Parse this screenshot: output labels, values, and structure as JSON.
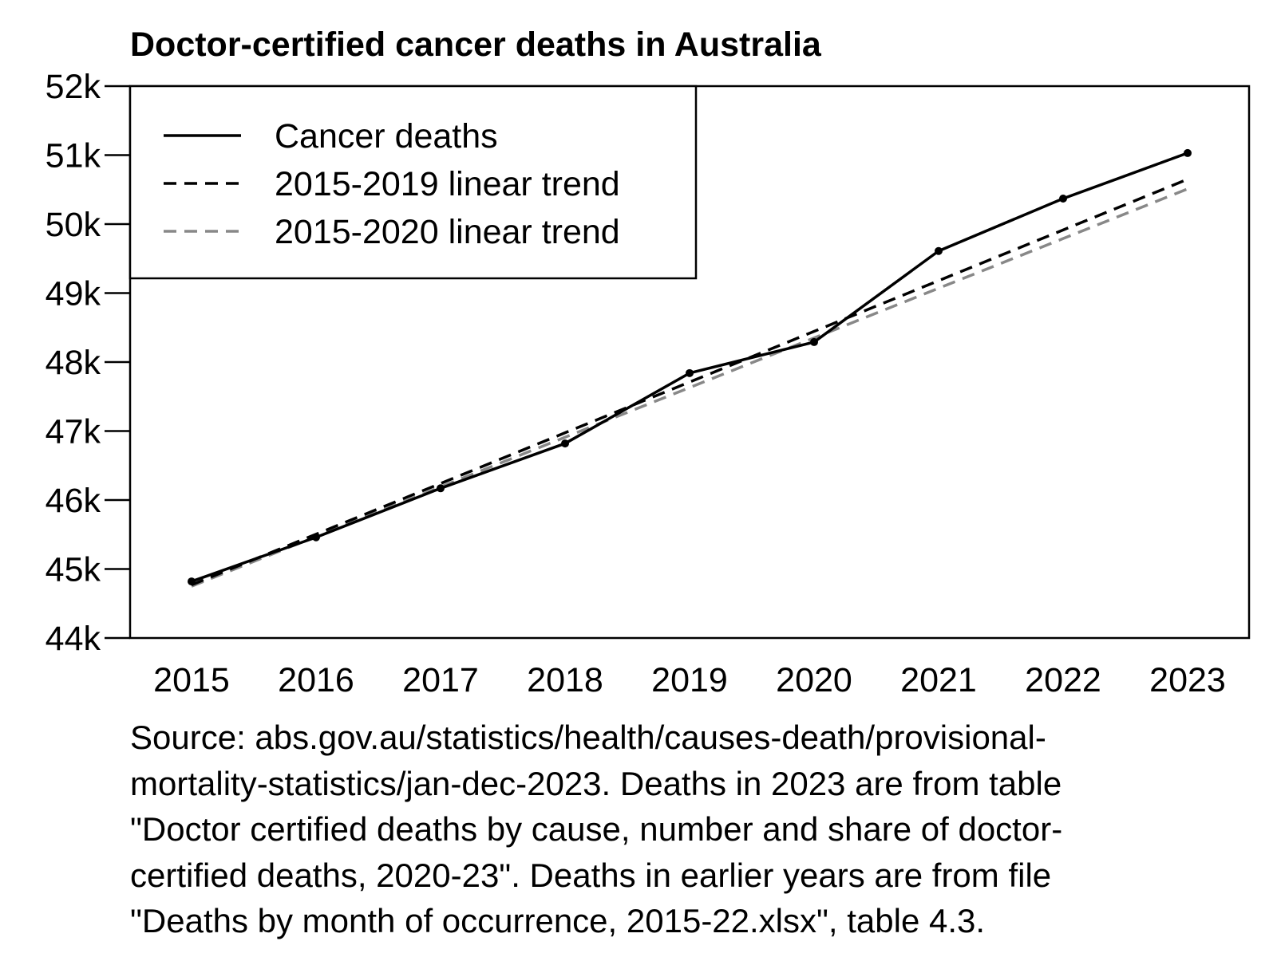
{
  "chart_data": {
    "type": "line",
    "title": "Doctor-certified cancer deaths in Australia",
    "xlabel": "",
    "ylabel": "",
    "categories": [
      "2015",
      "2016",
      "2017",
      "2018",
      "2019",
      "2020",
      "2021",
      "2022",
      "2023"
    ],
    "ylim": [
      44000,
      52000
    ],
    "yticks": [
      44000,
      45000,
      46000,
      47000,
      48000,
      49000,
      50000,
      51000,
      52000
    ],
    "ytick_labels": [
      "44k",
      "45k",
      "46k",
      "47k",
      "48k",
      "49k",
      "50k",
      "51k",
      "52k"
    ],
    "grid": false,
    "legend_position": "top-left",
    "series": [
      {
        "name": "Cancer deaths",
        "style": "solid",
        "color": "#000000",
        "markers": true,
        "values": [
          44820,
          45460,
          46170,
          46820,
          47840,
          48290,
          49610,
          50370,
          51030
        ]
      },
      {
        "name": "2015-2019 linear trend",
        "style": "dashed",
        "color": "#000000",
        "markers": false,
        "values": [
          44770,
          45505,
          46240,
          46975,
          47710,
          48445,
          49180,
          49915,
          50650
        ]
      },
      {
        "name": "2015-2020 linear trend",
        "style": "dashed",
        "color": "#888888",
        "markers": false,
        "values": [
          44750,
          45470,
          46190,
          46910,
          47630,
          48350,
          49070,
          49790,
          50510
        ]
      }
    ]
  },
  "caption_lines": [
    "Source: abs.gov.au/statistics/health/causes-death/provisional-",
    "mortality-statistics/jan-dec-2023. Deaths in 2023 are from table",
    "\"Doctor certified deaths by cause, number and share of doctor-",
    "certified deaths, 2020-23\". Deaths in earlier years are from file",
    "\"Deaths by month of occurrence, 2015-22.xlsx\", table 4.3."
  ]
}
